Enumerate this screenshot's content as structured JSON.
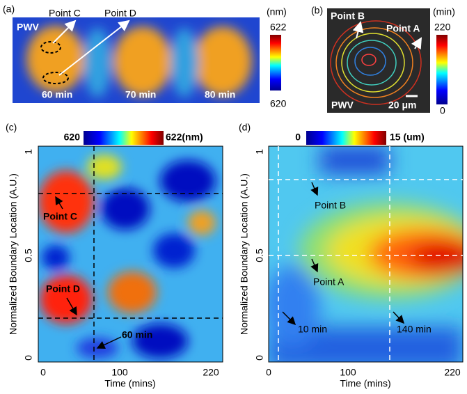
{
  "panels": [
    {
      "label": "(a)",
      "texts": [
        "PWV",
        "Point C",
        "Point D",
        "60 min",
        "70 min",
        "80 min"
      ],
      "colorbar": {
        "unit": "(nm)",
        "max": "622",
        "min": "620"
      }
    },
    {
      "label": "(b)",
      "texts": [
        "Point B",
        "Point A",
        "PWV",
        "20 μm"
      ],
      "colorbar": {
        "unit": "(min)",
        "max": "220",
        "min": "0"
      }
    },
    {
      "label": "(c)",
      "colorbar": {
        "min": "620",
        "max": "622(nm)"
      },
      "ylabel": "Normalized Boundary Location (A.U.)",
      "xlabel": "Time (mins)",
      "xticks": [
        "0",
        "100",
        "220"
      ],
      "yticks": [
        "1",
        "0.5",
        "0"
      ],
      "annotations": [
        "Point C",
        "Point D",
        "60 min"
      ]
    },
    {
      "label": "(d)",
      "colorbar": {
        "min": "0",
        "max": "15 (um)"
      },
      "ylabel": "Normalized Boundary Location (A.U.)",
      "xlabel": "Time (mins)",
      "xticks": [
        "0",
        "100",
        "220"
      ],
      "yticks": [
        "1",
        "0.5",
        "0"
      ],
      "annotations": [
        "Point B",
        "Point A",
        "10 min",
        "140 min"
      ]
    }
  ]
}
